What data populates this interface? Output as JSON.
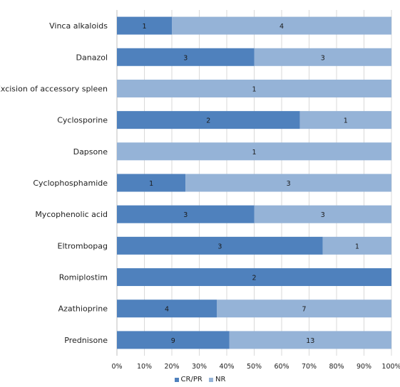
{
  "chart_data": {
    "type": "bar",
    "orientation": "horizontal",
    "stacked": "percent",
    "categories": [
      "Vinca alkaloids",
      "Danazol",
      "Excision of accessory spleen",
      "Cyclosporine",
      "Dapsone",
      "Cyclophosphamide",
      "Mycophenolic acid",
      "Eltrombopag",
      "Romiplostim",
      "Azathioprine",
      "Prednisone"
    ],
    "series": [
      {
        "name": "CR/PR",
        "color": "#4f81bd",
        "values": [
          1,
          3,
          0,
          2,
          0,
          1,
          3,
          3,
          2,
          4,
          9
        ]
      },
      {
        "name": "NR",
        "color": "#95b3d7",
        "values": [
          4,
          3,
          1,
          1,
          1,
          3,
          3,
          1,
          0,
          7,
          13
        ]
      }
    ],
    "x_ticks": [
      "0%",
      "10%",
      "20%",
      "30%",
      "40%",
      "50%",
      "60%",
      "70%",
      "80%",
      "90%",
      "100%"
    ],
    "xlim": [
      0,
      100
    ],
    "legend_position": "bottom",
    "grid": true,
    "title": "",
    "xlabel": "",
    "ylabel": ""
  }
}
